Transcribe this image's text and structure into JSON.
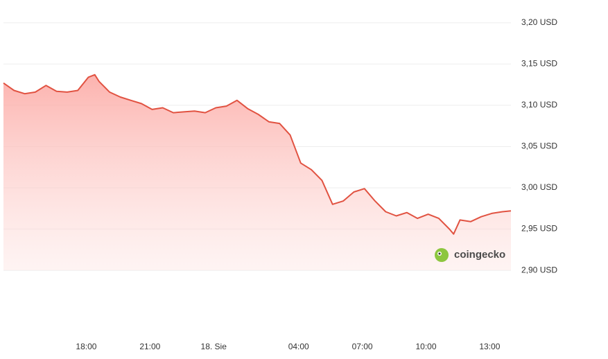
{
  "chart_data": {
    "type": "area",
    "color": "#e15241",
    "watermark": "coingecko",
    "x": [
      14.1,
      14.6,
      15.1,
      15.6,
      16.1,
      16.6,
      17.1,
      17.6,
      18.1,
      18.4,
      18.6,
      19.1,
      19.6,
      20.1,
      20.6,
      21.1,
      21.6,
      22.1,
      22.6,
      23.1,
      23.6,
      24.1,
      24.6,
      25.1,
      25.6,
      26.1,
      26.6,
      27.1,
      27.6,
      28.1,
      28.6,
      29.1,
      29.6,
      30.1,
      30.6,
      31.1,
      31.6,
      32.1,
      32.6,
      33.1,
      33.6,
      34.1,
      34.6,
      35.1,
      35.3,
      35.6,
      36.1,
      36.6,
      37.1,
      37.6,
      38.0
    ],
    "values": [
      3.127,
      3.118,
      3.114,
      3.116,
      3.124,
      3.117,
      3.116,
      3.118,
      3.134,
      3.137,
      3.129,
      3.116,
      3.11,
      3.106,
      3.102,
      3.095,
      3.097,
      3.091,
      3.092,
      3.093,
      3.091,
      3.097,
      3.099,
      3.106,
      3.096,
      3.089,
      3.08,
      3.078,
      3.064,
      3.03,
      3.022,
      3.009,
      2.98,
      2.984,
      2.995,
      2.999,
      2.984,
      2.971,
      2.966,
      2.97,
      2.963,
      2.968,
      2.963,
      2.95,
      2.944,
      2.961,
      2.959,
      2.965,
      2.969,
      2.971,
      2.972
    ],
    "xlim": [
      14.1,
      38.0
    ],
    "xticks": [
      {
        "value": 18,
        "label": "18:00"
      },
      {
        "value": 21,
        "label": "21:00"
      },
      {
        "value": 24,
        "label": "18. Sie"
      },
      {
        "value": 28,
        "label": "04:00"
      },
      {
        "value": 31,
        "label": "07:00"
      },
      {
        "value": 34,
        "label": "10:00"
      },
      {
        "value": 37,
        "label": "13:00"
      }
    ],
    "ylim": [
      2.89,
      3.22
    ],
    "yticks": [
      {
        "value": 2.9,
        "label": "2,90 USD"
      },
      {
        "value": 2.95,
        "label": "2,95 USD"
      },
      {
        "value": 3.0,
        "label": "3,00 USD"
      },
      {
        "value": 3.05,
        "label": "3,05 USD"
      },
      {
        "value": 3.1,
        "label": "3,10 USD"
      },
      {
        "value": 3.15,
        "label": "3,15 USD"
      },
      {
        "value": 3.2,
        "label": "3,20 USD"
      }
    ],
    "grid": true
  }
}
